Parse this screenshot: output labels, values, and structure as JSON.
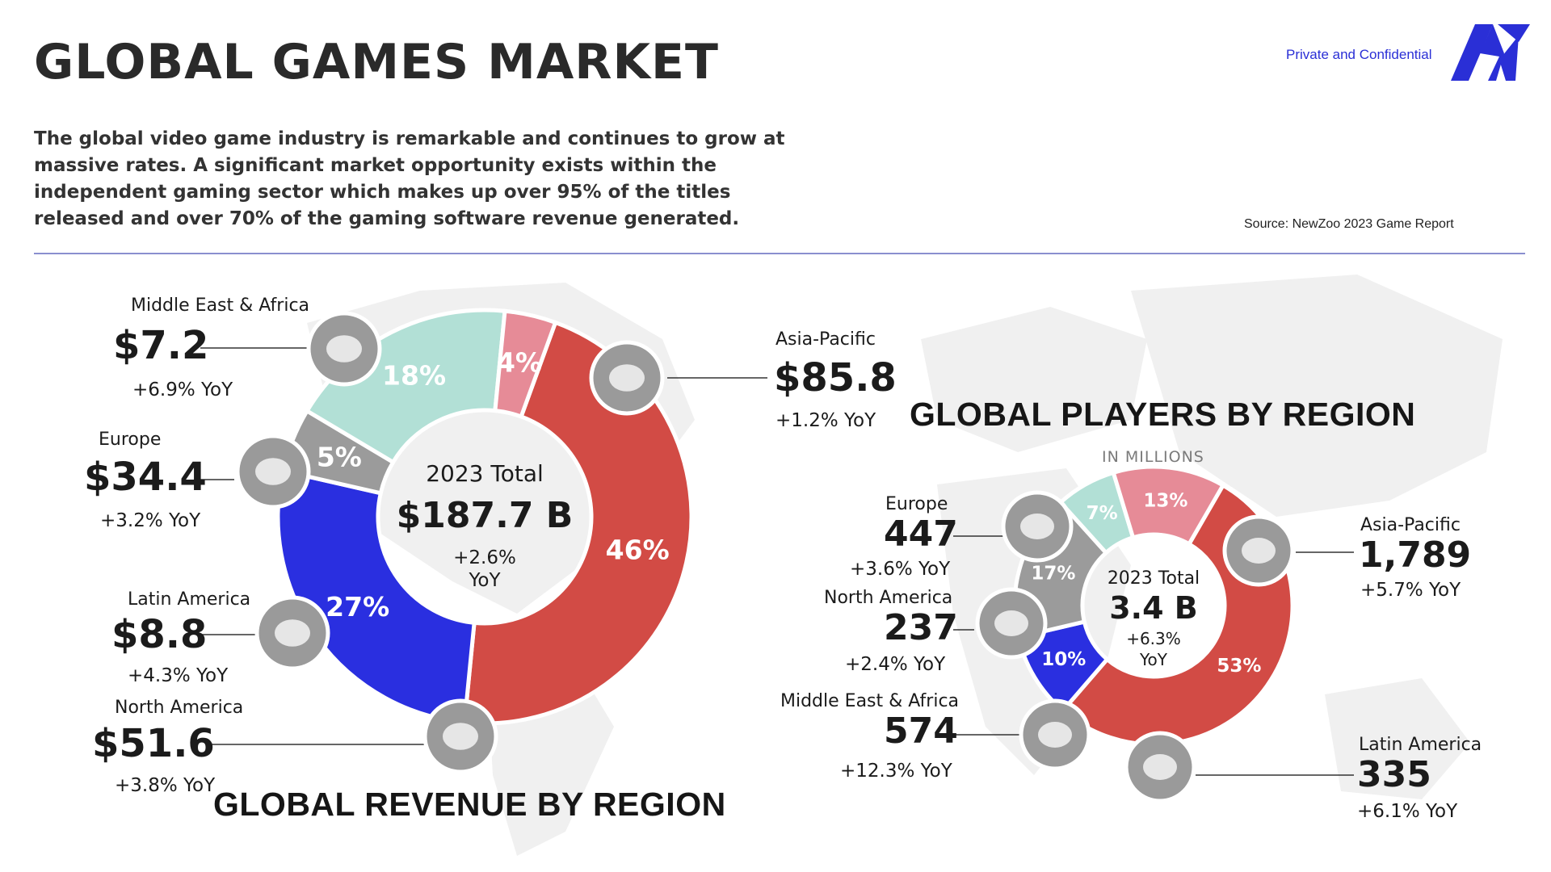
{
  "header": {
    "title": "GLOBAL GAMES MARKET",
    "confidential": "Private and Confidential",
    "intro": "The global video game industry is remarkable and continues to grow at massive rates. A significant market opportunity exists within the independent gaming sector which makes up over 95% of the titles released and over 70% of the gaming software revenue generated.",
    "source": "Source: NewZoo 2023 Game Report",
    "brand_color": "#2a2fd6"
  },
  "chart_data": [
    {
      "type": "pie",
      "title": "GLOBAL REVENUE BY REGION",
      "center": {
        "label": "2023 Total",
        "value": "$187.7 B",
        "growth": "+2.6%",
        "growth_unit": "YoY"
      },
      "slices": [
        {
          "name": "Asia-Pacific",
          "value": 85.8,
          "display": "$85.8",
          "share": 46,
          "share_label": "46%",
          "yoy": "+1.2% YoY",
          "color": "#d24b45"
        },
        {
          "name": "North America",
          "value": 51.6,
          "display": "$51.6",
          "share": 27,
          "share_label": "27%",
          "yoy": "+3.8% YoY",
          "color": "#2a2fe0"
        },
        {
          "name": "Latin America",
          "value": 8.8,
          "display": "$8.8",
          "share": 5,
          "share_label": "5%",
          "yoy": "+4.3% YoY",
          "color": "#9b9b9b"
        },
        {
          "name": "Europe",
          "value": 34.4,
          "display": "$34.4",
          "share": 18,
          "share_label": "18%",
          "yoy": "+3.2% YoY",
          "color": "#b2e0d6"
        },
        {
          "name": "Middle East & Africa",
          "value": 7.2,
          "display": "$7.2",
          "share": 4,
          "share_label": "4%",
          "yoy": "+6.9% YoY",
          "color": "#e68b97"
        }
      ]
    },
    {
      "type": "pie",
      "title": "GLOBAL PLAYERS BY REGION",
      "subtitle": "IN MILLIONS",
      "center": {
        "label": "2023 Total",
        "value": "3.4 B",
        "growth": "+6.3%",
        "growth_unit": "YoY"
      },
      "slices": [
        {
          "name": "Asia-Pacific",
          "value": 1789,
          "display": "1,789",
          "share": 53,
          "share_label": "53%",
          "yoy": "+5.7% YoY",
          "color": "#d24b45"
        },
        {
          "name": "Latin America",
          "value": 335,
          "display": "335",
          "share": 10,
          "share_label": "10%",
          "yoy": "+6.1% YoY",
          "color": "#2a2fe0"
        },
        {
          "name": "Middle East & Africa",
          "value": 574,
          "display": "574",
          "share": 17,
          "share_label": "17%",
          "yoy": "+12.3% YoY",
          "color": "#9b9b9b"
        },
        {
          "name": "North America",
          "value": 237,
          "display": "237",
          "share": 7,
          "share_label": "7%",
          "yoy": "+2.4% YoY",
          "color": "#b2e0d6"
        },
        {
          "name": "Europe",
          "value": 447,
          "display": "447",
          "share": 13,
          "share_label": "13%",
          "yoy": "+3.6% YoY",
          "color": "#e68b97"
        }
      ]
    }
  ]
}
